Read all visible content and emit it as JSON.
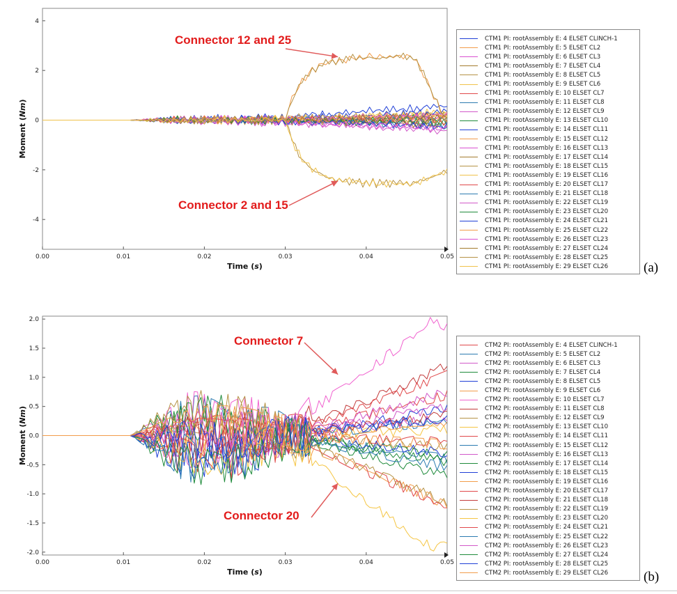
{
  "chart_data": [
    {
      "type": "line",
      "panel_label": "(a)",
      "xlabel": "Time (s)",
      "ylabel": "Moment (Nm)",
      "xlim": [
        0,
        0.05
      ],
      "ylim": [
        -5.2,
        4.5
      ],
      "xticks": [
        "0.00",
        "0.01",
        "0.02",
        "0.03",
        "0.04",
        "0.05"
      ],
      "xtick_values": [
        0,
        0.01,
        0.02,
        0.03,
        0.04,
        0.05
      ],
      "yticks": [
        "4",
        "2",
        "0",
        "-2",
        "-4"
      ],
      "ytick_values": [
        4,
        2,
        0,
        -2,
        -4
      ],
      "legend_position": "right",
      "annotations": [
        {
          "text": "Connector 12 and 25",
          "target_x": 0.0365,
          "target_y": 2.55
        },
        {
          "text": "Connector 2 and 15",
          "target_x": 0.0365,
          "target_y": -2.45
        }
      ],
      "series": [
        {
          "name": "CTM1 PI: rootAssembly E: 4 ELSET CLINCH-1",
          "color": "#1f3fd6",
          "behavior": "drift",
          "final": 0.6
        },
        {
          "name": "CTM1 PI: rootAssembly E: 5 ELSET CL2",
          "color": "#f29c4a",
          "behavior": "drift",
          "final": 0.1
        },
        {
          "name": "CTM1 PI: rootAssembly E: 6 ELSET CL3",
          "color": "#d94fd0",
          "behavior": "drift",
          "final": -0.3
        },
        {
          "name": "CTM1 PI: rootAssembly E: 7 ELSET CL4",
          "color": "#a37a2c",
          "behavior": "drift",
          "final": 0.2
        },
        {
          "name": "CTM1 PI: rootAssembly E: 8 ELSET CL5",
          "color": "#b59245",
          "behavior": "drift",
          "final": -0.1
        },
        {
          "name": "CTM1 PI: rootAssembly E: 9 ELSET CL6",
          "color": "#f0c24a",
          "behavior": "drift",
          "final": 0.3
        },
        {
          "name": "CTM1 PI: rootAssembly E: 10 ELSET CL7",
          "color": "#e0484a",
          "behavior": "drift",
          "final": 0.15
        },
        {
          "name": "CTM1 PI: rootAssembly E: 11 ELSET CL8",
          "color": "#2b7bb0",
          "behavior": "drift",
          "final": -0.2
        },
        {
          "name": "CTM1 PI: rootAssembly E: 12 ELSET CL9",
          "color": "#d158c9",
          "behavior": "drift",
          "final": -0.45
        },
        {
          "name": "CTM1 PI: rootAssembly E: 13 ELSET CL10",
          "color": "#1e8a3a",
          "behavior": "drift",
          "final": 0.05
        },
        {
          "name": "CTM1 PI: rootAssembly E: 14 ELSET CL11",
          "color": "#1f3fd6",
          "behavior": "drift",
          "final": 0.35
        },
        {
          "name": "CTM1 PI: rootAssembly E: 15 ELSET CL12",
          "color": "#f29c4a",
          "behavior": "positive",
          "final": 0.0
        },
        {
          "name": "CTM1 PI: rootAssembly E: 16 ELSET CL13",
          "color": "#d94fd0",
          "behavior": "drift",
          "final": 0.1
        },
        {
          "name": "CTM1 PI: rootAssembly E: 17 ELSET CL14",
          "color": "#a37a2c",
          "behavior": "drift",
          "final": -0.15
        },
        {
          "name": "CTM1 PI: rootAssembly E: 18 ELSET CL15",
          "color": "#b59245",
          "behavior": "negative",
          "final": 0.0
        },
        {
          "name": "CTM1 PI: rootAssembly E: 19 ELSET CL16",
          "color": "#f0c24a",
          "behavior": "drift",
          "final": 0.25
        },
        {
          "name": "CTM1 PI: rootAssembly E: 20 ELSET CL17",
          "color": "#e0484a",
          "behavior": "drift",
          "final": -0.05
        },
        {
          "name": "CTM1 PI: rootAssembly E: 21 ELSET CL18",
          "color": "#2b7bb0",
          "behavior": "drift",
          "final": 0.0
        },
        {
          "name": "CTM1 PI: rootAssembly E: 22 ELSET CL19",
          "color": "#d158c9",
          "behavior": "drift",
          "final": 0.2
        },
        {
          "name": "CTM1 PI: rootAssembly E: 23 ELSET CL20",
          "color": "#1e8a3a",
          "behavior": "drift",
          "final": -0.1
        },
        {
          "name": "CTM1 PI: rootAssembly E: 24 ELSET CL21",
          "color": "#1f3fd6",
          "behavior": "drift",
          "final": -0.25
        },
        {
          "name": "CTM1 PI: rootAssembly E: 25 ELSET CL22",
          "color": "#f29c4a",
          "behavior": "drift",
          "final": 0.05
        },
        {
          "name": "CTM1 PI: rootAssembly E: 26 ELSET CL23",
          "color": "#d94fd0",
          "behavior": "drift",
          "final": -0.35
        },
        {
          "name": "CTM1 PI: rootAssembly E: 27 ELSET CL24",
          "color": "#a37a2c",
          "behavior": "drift",
          "final": 0.1
        },
        {
          "name": "CTM1 PI: rootAssembly E: 28 ELSET CL25",
          "color": "#b59245",
          "behavior": "positive",
          "final": 0.0
        },
        {
          "name": "CTM1 PI: rootAssembly E: 29 ELSET CL26",
          "color": "#f0c24a",
          "behavior": "negative",
          "final": 0.0
        }
      ]
    },
    {
      "type": "line",
      "panel_label": "(b)",
      "xlabel": "Time (s)",
      "ylabel": "Moment (Nm)",
      "xlim": [
        0,
        0.05
      ],
      "ylim": [
        -2.05,
        2.05
      ],
      "xticks": [
        "0.00",
        "0.01",
        "0.02",
        "0.03",
        "0.04",
        "0.05"
      ],
      "xtick_values": [
        0,
        0.01,
        0.02,
        0.03,
        0.04,
        0.05
      ],
      "yticks": [
        "2.0",
        "1.5",
        "1.0",
        "0.5",
        "0.0",
        "-0.5",
        "-1.0",
        "-1.5",
        "-2.0"
      ],
      "ytick_values": [
        2.0,
        1.5,
        1.0,
        0.5,
        0.0,
        -0.5,
        -1.0,
        -1.5,
        -2.0
      ],
      "legend_position": "right",
      "annotations": [
        {
          "text": "Connector 7",
          "target_x": 0.0365,
          "target_y": 1.05
        },
        {
          "text": "Connector 20",
          "target_x": 0.0365,
          "target_y": -0.82
        }
      ],
      "series": [
        {
          "name": "CTM2 PI: rootAssembly E: 4 ELSET CLINCH-1",
          "color": "#e0484a",
          "final": 0.7
        },
        {
          "name": "CTM2 PI: rootAssembly E: 5 ELSET CL2",
          "color": "#2b7bb0",
          "final": -0.4
        },
        {
          "name": "CTM2 PI: rootAssembly E: 6 ELSET CL3",
          "color": "#d158c9",
          "final": 0.3
        },
        {
          "name": "CTM2 PI: rootAssembly E: 7 ELSET CL4",
          "color": "#1e8a3a",
          "final": -0.7
        },
        {
          "name": "CTM2 PI: rootAssembly E: 8 ELSET CL5",
          "color": "#1f3fd6",
          "final": 0.45
        },
        {
          "name": "CTM2 PI: rootAssembly E: 9 ELSET CL6",
          "color": "#f29c4a",
          "final": -1.2
        },
        {
          "name": "CTM2 PI: rootAssembly E: 10 ELSET CL7",
          "color": "#f061cf",
          "final": 1.85,
          "peak": 2.0
        },
        {
          "name": "CTM2 PI: rootAssembly E: 11 ELSET CL8",
          "color": "#c23a3a",
          "final": 1.2
        },
        {
          "name": "CTM2 PI: rootAssembly E: 12 ELSET CL9",
          "color": "#b59245",
          "final": -0.2
        },
        {
          "name": "CTM2 PI: rootAssembly E: 13 ELSET CL10",
          "color": "#f5c542",
          "final": 0.1
        },
        {
          "name": "CTM2 PI: rootAssembly E: 14 ELSET CL11",
          "color": "#e0484a",
          "final": -1.25
        },
        {
          "name": "CTM2 PI: rootAssembly E: 15 ELSET CL12",
          "color": "#2b7bb0",
          "final": 0.25
        },
        {
          "name": "CTM2 PI: rootAssembly E: 16 ELSET CL13",
          "color": "#d158c9",
          "final": 0.5
        },
        {
          "name": "CTM2 PI: rootAssembly E: 17 ELSET CL14",
          "color": "#1e8a3a",
          "final": -0.35
        },
        {
          "name": "CTM2 PI: rootAssembly E: 18 ELSET CL15",
          "color": "#1f3fd6",
          "final": -0.3
        },
        {
          "name": "CTM2 PI: rootAssembly E: 19 ELSET CL16",
          "color": "#f29c4a",
          "final": 0.2
        },
        {
          "name": "CTM2 PI: rootAssembly E: 20 ELSET CL17",
          "color": "#e0484a",
          "final": -0.1
        },
        {
          "name": "CTM2 PI: rootAssembly E: 21 ELSET CL18",
          "color": "#c23a3a",
          "final": 0.35
        },
        {
          "name": "CTM2 PI: rootAssembly E: 22 ELSET CL19",
          "color": "#b59245",
          "final": -1.15
        },
        {
          "name": "CTM2 PI: rootAssembly E: 23 ELSET CL20",
          "color": "#f5c542",
          "final": -1.85,
          "peak": -2.0
        },
        {
          "name": "CTM2 PI: rootAssembly E: 24 ELSET CL21",
          "color": "#e0484a",
          "final": 1.05
        },
        {
          "name": "CTM2 PI: rootAssembly E: 25 ELSET CL22",
          "color": "#2b7bb0",
          "final": -0.55
        },
        {
          "name": "CTM2 PI: rootAssembly E: 26 ELSET CL23",
          "color": "#d158c9",
          "final": 0.75
        },
        {
          "name": "CTM2 PI: rootAssembly E: 27 ELSET CL24",
          "color": "#1e8a3a",
          "final": -0.45
        },
        {
          "name": "CTM2 PI: rootAssembly E: 28 ELSET CL25",
          "color": "#1f3fd6",
          "final": 0.3
        },
        {
          "name": "CTM2 PI: rootAssembly E: 29 ELSET CL26",
          "color": "#f29c4a",
          "final": -0.15
        }
      ]
    }
  ]
}
